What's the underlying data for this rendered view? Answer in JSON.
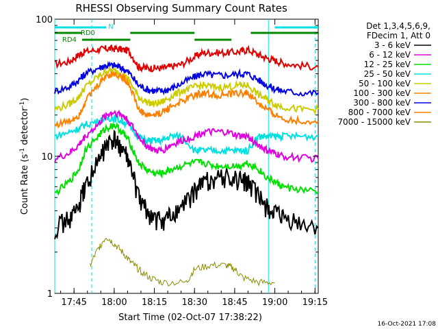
{
  "chart_data": {
    "type": "line",
    "title": "RHESSI Observing Summary Count Rates",
    "xlabel": "Start Time (02-Oct-07 17:38:22)",
    "ylabel_main": "Count Rate (s",
    "ylabel_sup1": "-1",
    "ylabel_mid": " detector",
    "ylabel_sup2": "-1",
    "ylabel_end": ")",
    "yscale": "log",
    "ylim": [
      1,
      100
    ],
    "y_ticks": [
      "1",
      "10",
      "100"
    ],
    "x_range_minutes": [
      17.63,
      19.27
    ],
    "x_ticks": [
      "17:45",
      "18:00",
      "18:15",
      "18:30",
      "18:45",
      "19:00",
      "19:15"
    ],
    "legend_header": [
      "Det 1,3,4,5,6,9,",
      "FDecim 1, Att 0"
    ],
    "series": [
      {
        "name": "3 - 6 keV",
        "color": "#e00000",
        "x": [
          17.63,
          17.72,
          17.78,
          17.82,
          17.9,
          17.95,
          18.0,
          18.05,
          18.09,
          18.15,
          18.2,
          18.25,
          18.3,
          18.35,
          18.42,
          18.5,
          18.55,
          18.62,
          18.7,
          18.78,
          18.83,
          18.9,
          18.95,
          19.0,
          19.05,
          19.15,
          19.27
        ],
        "y": [
          47,
          49,
          55,
          58,
          60,
          61,
          61,
          60,
          59,
          45,
          44,
          44,
          44,
          45,
          47,
          53,
          57,
          57,
          57,
          58,
          60,
          55,
          52,
          50,
          48,
          46,
          45
        ]
      },
      {
        "name": "6 - 12 keV",
        "color": "#0000e0",
        "x": [
          17.63,
          17.72,
          17.78,
          17.82,
          17.9,
          17.95,
          18.0,
          18.05,
          18.09,
          18.15,
          18.2,
          18.25,
          18.3,
          18.35,
          18.42,
          18.5,
          18.55,
          18.62,
          18.7,
          18.78,
          18.83,
          18.9,
          18.95,
          19.0,
          19.05,
          19.15,
          19.27
        ],
        "y": [
          30,
          32,
          36,
          40,
          44,
          46,
          46,
          44,
          41,
          33,
          31,
          30,
          30,
          31,
          34,
          38,
          40,
          39,
          39,
          40,
          40,
          36,
          33,
          31,
          30,
          29,
          29
        ]
      },
      {
        "name": "12 - 25 keV",
        "color": "#cccc00",
        "x": [
          17.63,
          17.72,
          17.78,
          17.82,
          17.9,
          17.95,
          18.0,
          18.05,
          18.09,
          18.15,
          18.2,
          18.25,
          18.3,
          18.35,
          18.42,
          18.5,
          18.55,
          18.62,
          18.7,
          18.78,
          18.83,
          18.9,
          18.95,
          19.0,
          19.05,
          19.15,
          19.27
        ],
        "y": [
          22,
          24,
          27,
          32,
          38,
          42,
          42,
          40,
          36,
          27,
          25,
          24,
          25,
          27,
          30,
          32,
          33,
          32,
          32,
          33,
          33,
          28,
          26,
          24,
          23,
          22,
          22
        ]
      },
      {
        "name": "25 - 50 keV",
        "color": "#00e0e0",
        "x": [
          17.63,
          17.72,
          17.78,
          17.82,
          17.9,
          17.95,
          18.0,
          18.05,
          18.09,
          18.15,
          18.2,
          18.25,
          18.3,
          18.35,
          18.42,
          18.5,
          18.55,
          18.62,
          18.7,
          18.78,
          18.83,
          18.9,
          18.95,
          19.0,
          19.05,
          19.15,
          19.27
        ],
        "y": [
          14,
          15,
          16,
          17,
          18,
          19,
          19,
          18,
          17,
          14,
          13,
          13,
          13,
          14,
          14,
          11,
          11,
          11,
          11,
          11,
          11,
          14,
          14,
          14,
          14,
          14,
          14
        ]
      },
      {
        "name": "50 - 100 keV",
        "color": "#00e000",
        "x": [
          17.63,
          17.72,
          17.78,
          17.82,
          17.9,
          17.95,
          18.0,
          18.05,
          18.09,
          18.15,
          18.2,
          18.25,
          18.3,
          18.35,
          18.42,
          18.5,
          18.55,
          18.62,
          18.7,
          18.78,
          18.83,
          18.9,
          18.95,
          19.0,
          19.05,
          19.15,
          19.27
        ],
        "y": [
          5.3,
          6.5,
          8,
          11,
          14,
          16,
          17,
          15,
          13,
          9,
          8,
          7.5,
          7.5,
          8,
          8.5,
          9,
          9,
          8.5,
          8.5,
          8.5,
          9,
          8,
          7,
          6.5,
          6,
          5.7,
          5.5
        ]
      },
      {
        "name": "100 - 300 keV",
        "color": "#e000e0",
        "x": [
          17.63,
          17.72,
          17.78,
          17.82,
          17.9,
          17.95,
          18.0,
          18.05,
          18.09,
          18.15,
          18.2,
          18.25,
          18.3,
          18.35,
          18.42,
          18.5,
          18.55,
          18.62,
          18.7,
          18.78,
          18.83,
          18.9,
          18.95,
          19.0,
          19.05,
          19.15,
          19.27
        ],
        "y": [
          9.5,
          10.5,
          12,
          14,
          17,
          20,
          21,
          20,
          18,
          14,
          12,
          11,
          11,
          12,
          13,
          14,
          15,
          15,
          15,
          14,
          14,
          12,
          11,
          10.5,
          10,
          9.8,
          9.6
        ]
      },
      {
        "name": "300 - 800 keV",
        "color": "#0000e0",
        "x": [],
        "y": []
      },
      {
        "name": "800 - 7000 keV",
        "color": "#ff8000",
        "x": [
          17.63,
          17.72,
          17.78,
          17.82,
          17.9,
          17.95,
          18.0,
          18.05,
          18.09,
          18.15,
          18.2,
          18.25,
          18.3,
          18.35,
          18.42,
          18.5,
          18.55,
          18.62,
          18.7,
          18.78,
          18.83,
          18.9,
          18.95,
          19.0,
          19.05,
          19.15,
          19.27
        ],
        "y": [
          17,
          18,
          20,
          25,
          33,
          39,
          40,
          38,
          34,
          22,
          20,
          20,
          21,
          23,
          25,
          28,
          29,
          28,
          28,
          29,
          29,
          24,
          22,
          20,
          19,
          18,
          18
        ]
      },
      {
        "name": "7000 - 15000 keV",
        "color": "#8b8b00",
        "x": [
          17.85,
          17.9,
          17.95,
          18.0,
          18.05,
          18.1,
          18.15,
          18.22,
          18.3,
          18.45,
          18.5,
          18.6,
          18.7,
          18.75,
          18.8,
          18.9,
          19.0
        ],
        "y": [
          1.6,
          2.1,
          2.6,
          2.3,
          2.0,
          1.7,
          1.5,
          1.3,
          1.2,
          1.2,
          1.5,
          1.6,
          1.6,
          1.5,
          1.3,
          1.2,
          1.2
        ]
      },
      {
        "name": "3 - 6 keV bg",
        "color": "#000000",
        "x": [
          17.63,
          17.72,
          17.78,
          17.82,
          17.9,
          17.95,
          18.0,
          18.05,
          18.09,
          18.15,
          18.2,
          18.25,
          18.3,
          18.35,
          18.42,
          18.5,
          18.55,
          18.62,
          18.7,
          18.78,
          18.83,
          18.9,
          18.95,
          19.0,
          19.05,
          19.15,
          19.27
        ],
        "y": [
          3.0,
          3.5,
          4.2,
          6,
          9,
          12,
          13,
          11.5,
          9,
          5,
          4,
          3.5,
          3.4,
          3.6,
          4.2,
          5.5,
          6.5,
          7,
          7,
          6.8,
          6.5,
          5,
          4.2,
          3.8,
          3.5,
          3.2,
          3.0
        ]
      }
    ],
    "legend_entries": [
      {
        "label": "3 - 6 keV",
        "color": "#000000"
      },
      {
        "label": "6 - 12 keV",
        "color": "#e000e0"
      },
      {
        "label": "12 - 25 keV",
        "color": "#00e000"
      },
      {
        "label": "25 - 50 keV",
        "color": "#00e0e0"
      },
      {
        "label": "50 - 100 keV",
        "color": "#cccc00"
      },
      {
        "label": "100 - 300 keV",
        "color": "#ff8000"
      },
      {
        "label": "300 - 800 keV",
        "color": "#0000e0"
      },
      {
        "label": "800 - 7000 keV",
        "color": "#ff8000"
      },
      {
        "label": "7000 - 15000 keV",
        "color": "#8b8b00"
      }
    ],
    "state_bars": {
      "N": {
        "label": "N",
        "color": "#00e0e0",
        "segments": [
          [
            17.63,
            17.95
          ],
          [
            19.0,
            19.27
          ]
        ]
      },
      "RD0": {
        "label": "RD0",
        "color": "#008800",
        "segments": [
          [
            17.63,
            17.8
          ],
          [
            18.1,
            18.5
          ],
          [
            18.85,
            19.27
          ]
        ]
      },
      "RD4": {
        "label": "RD4",
        "color": "#008800",
        "segments": [
          [
            17.8,
            18.1
          ],
          [
            18.5,
            18.73
          ]
        ]
      }
    },
    "vlines_cyan_solid": [
      17.63,
      18.96
    ],
    "vlines_cyan_dashed": [
      17.86,
      19.25
    ],
    "vlines_red": [
      18.09,
      18.72
    ]
  },
  "footer": {
    "timestamp": "16-Oct-2021 17:08"
  }
}
